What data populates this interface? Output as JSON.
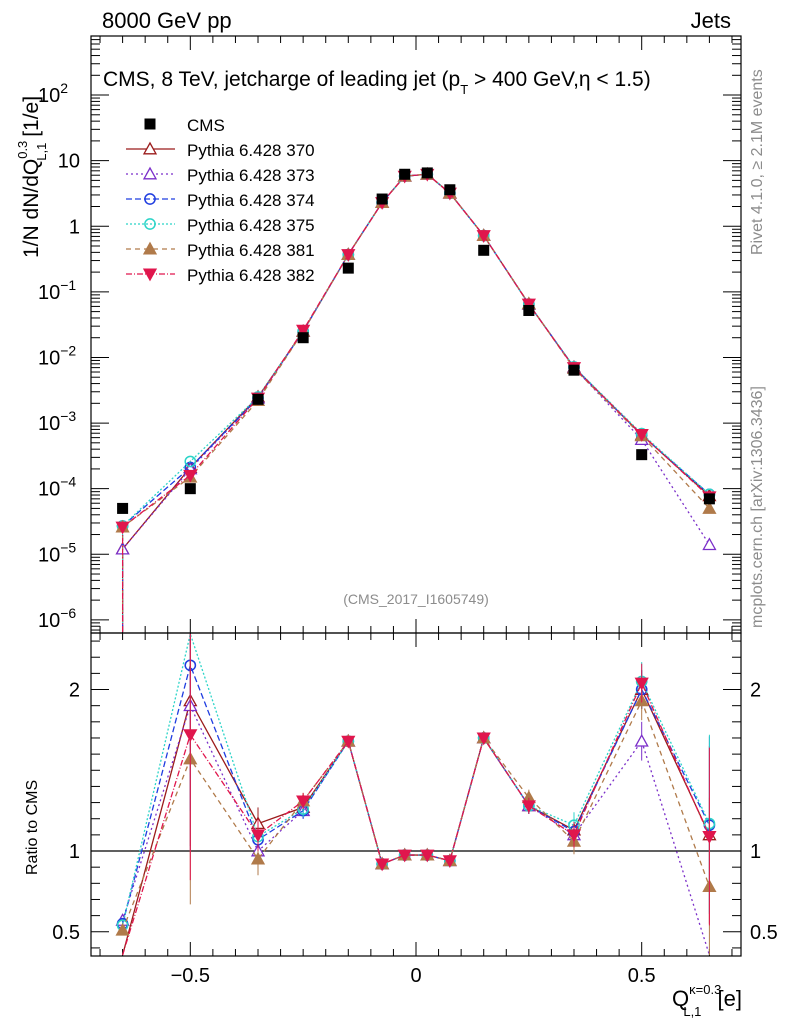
{
  "header": {
    "left": "8000 GeV pp",
    "right": "Jets"
  },
  "side": {
    "rivet": "Rivet 4.1.0, ≥ 2.1M events",
    "mcplots": "mcplots.cern.ch [arXiv:1306.3436]"
  },
  "chart_data": {
    "type": "scatter",
    "title": "CMS, 8 TeV, jetcharge of leading jet (p_T > 400 GeV,η < 1.5)",
    "title_parts": {
      "a": "CMS, 8 TeV, jetcharge of leading jet (p",
      "sub": "T",
      "b": " > 400 GeV,η < 1.5)"
    },
    "analysis_label": "(CMS_2017_I1605749)",
    "ylabel": {
      "main": "1/N dN/dQ",
      "sup": "0.3",
      "sub": "L,1",
      "unit": " [1/e]"
    },
    "xlabel": {
      "main": "Q",
      "sup": "κ=0.3",
      "sub": "L,1",
      "unit": " [e]"
    },
    "ratio_ylabel": "Ratio to CMS",
    "xlim": [
      -0.72,
      0.72
    ],
    "ylim_log10": [
      -6.2,
      2.9
    ],
    "ratio_ylim": [
      0.35,
      2.35
    ],
    "x_ticks": [
      {
        "v": -0.5,
        "label": "−0.5"
      },
      {
        "v": 0,
        "label": "0"
      },
      {
        "v": 0.5,
        "label": "0.5"
      }
    ],
    "y_ticks": [
      {
        "e": -6,
        "label": "10",
        "sup": "−6"
      },
      {
        "e": -5,
        "label": "10",
        "sup": "−5"
      },
      {
        "e": -4,
        "label": "10",
        "sup": "−4"
      },
      {
        "e": -3,
        "label": "10",
        "sup": "−3"
      },
      {
        "e": -2,
        "label": "10",
        "sup": "−2"
      },
      {
        "e": -1,
        "label": "10",
        "sup": "−1"
      },
      {
        "e": 0,
        "label": "1",
        "sup": ""
      },
      {
        "e": 1,
        "label": "10",
        "sup": ""
      },
      {
        "e": 2,
        "label": "10",
        "sup": "2"
      }
    ],
    "ratio_ticks": [
      {
        "v": 0.5,
        "label": "0.5"
      },
      {
        "v": 1,
        "label": "1"
      },
      {
        "v": 2,
        "label": "2"
      }
    ],
    "x": [
      -0.65,
      -0.5,
      -0.35,
      -0.25,
      -0.15,
      -0.075,
      -0.025,
      0.025,
      0.075,
      0.15,
      0.25,
      0.35,
      0.5,
      0.65
    ],
    "data": {
      "name": "CMS",
      "values": [
        5e-05,
        0.0001,
        0.0023,
        0.02,
        0.23,
        2.6,
        6.2,
        6.5,
        3.6,
        0.43,
        0.052,
        0.0064,
        0.00033,
        7e-05
      ]
    },
    "series": [
      {
        "name": "Pythia 6.428 370",
        "color": "#9b1b1b",
        "dash": "",
        "marker": "triangle-open",
        "values": [
          1.2e-05,
          0.00021,
          0.0025,
          0.025,
          0.37,
          2.3,
          5.8,
          6.2,
          3.2,
          0.72,
          0.065,
          0.0071,
          0.00066,
          7.8e-05
        ],
        "ratio": [
          0.24,
          1.93,
          1.17,
          1.27,
          1.68,
          0.92,
          0.975,
          0.975,
          0.94,
          1.7,
          1.28,
          1.13,
          2.0,
          1.1
        ]
      },
      {
        "name": "Pythia 6.428 373",
        "color": "#7b2fc9",
        "dash": "2,3",
        "marker": "triangle-open",
        "values": [
          1.2e-05,
          0.0002,
          0.0024,
          0.025,
          0.37,
          2.3,
          5.8,
          6.2,
          3.2,
          0.72,
          0.065,
          0.007,
          0.00056,
          1.4e-05
        ],
        "ratio": [
          0.57,
          1.9,
          1.0,
          1.25,
          1.68,
          0.92,
          0.975,
          0.975,
          0.94,
          1.7,
          1.28,
          1.1,
          1.68,
          0.2
        ]
      },
      {
        "name": "Pythia 6.428 374",
        "color": "#1f3de0",
        "dash": "6,3",
        "marker": "circle-open",
        "values": [
          2.7e-05,
          0.00021,
          0.0024,
          0.025,
          0.37,
          2.3,
          5.8,
          6.2,
          3.2,
          0.72,
          0.065,
          0.0071,
          0.00066,
          8.2e-05
        ],
        "ratio": [
          0.55,
          2.15,
          1.07,
          1.25,
          1.68,
          0.92,
          0.975,
          0.975,
          0.94,
          1.7,
          1.28,
          1.12,
          2.0,
          1.16
        ]
      },
      {
        "name": "Pythia 6.428 375",
        "color": "#2bd4c8",
        "dash": "2,2",
        "marker": "circle-open",
        "values": [
          2.7e-05,
          0.00026,
          0.0025,
          0.025,
          0.37,
          2.3,
          5.8,
          6.2,
          3.2,
          0.72,
          0.065,
          0.0072,
          0.00069,
          8.2e-05
        ],
        "ratio": [
          0.54,
          2.45,
          1.09,
          1.26,
          1.68,
          0.92,
          0.975,
          0.975,
          0.94,
          1.7,
          1.28,
          1.16,
          2.05,
          1.17
        ]
      },
      {
        "name": "Pythia 6.428 381",
        "color": "#b07a4a",
        "dash": "5,4",
        "marker": "triangle-filled",
        "values": [
          2.6e-05,
          0.00015,
          0.0022,
          0.025,
          0.37,
          2.3,
          5.8,
          6.2,
          3.2,
          0.72,
          0.066,
          0.0068,
          0.00064,
          5e-05
        ],
        "ratio": [
          0.51,
          1.57,
          0.95,
          1.31,
          1.68,
          0.92,
          0.975,
          0.975,
          0.94,
          1.7,
          1.33,
          1.06,
          1.93,
          0.78
        ]
      },
      {
        "name": "Pythia 6.428 382",
        "color": "#e0164d",
        "dash": "6,2,1,2",
        "marker": "triangle-down-filled",
        "values": [
          2.6e-05,
          0.00016,
          0.0024,
          0.026,
          0.37,
          2.3,
          5.8,
          6.2,
          3.2,
          0.72,
          0.065,
          0.007,
          0.00067,
          7.5e-05
        ],
        "ratio": [
          0.24,
          1.72,
          1.1,
          1.31,
          1.68,
          0.92,
          0.975,
          0.975,
          0.94,
          1.7,
          1.28,
          1.1,
          2.04,
          1.09
        ]
      }
    ]
  }
}
